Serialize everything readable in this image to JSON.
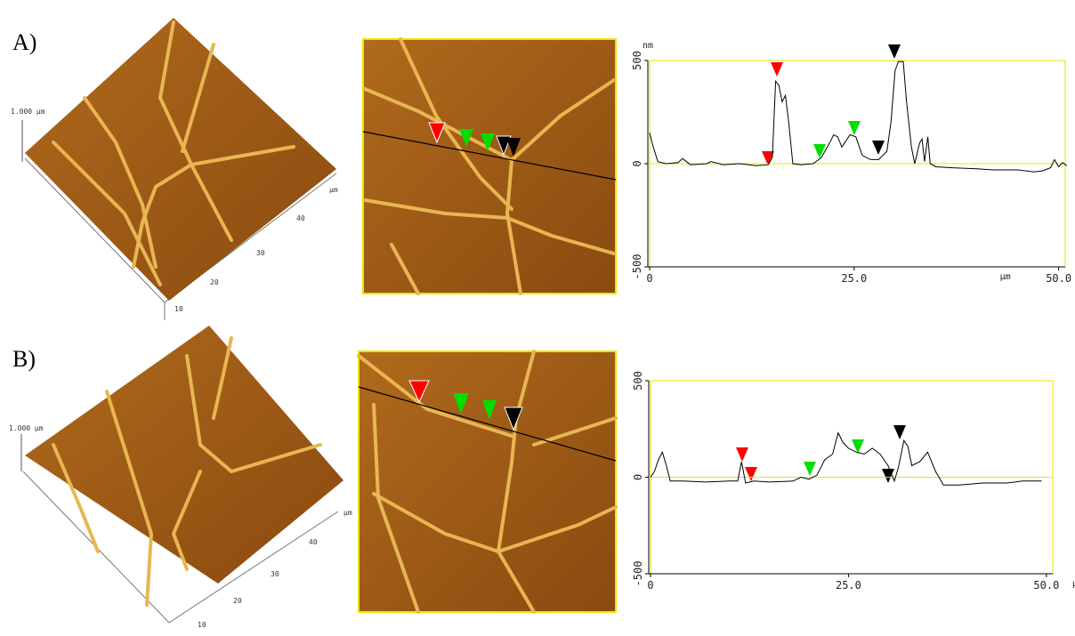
{
  "panels": [
    {
      "label": "A)",
      "afm3d": {
        "z_label": "1.000 µm",
        "unit": "µm",
        "ticks": [
          "10",
          "20",
          "30",
          "40"
        ]
      }
    },
    {
      "label": "B)",
      "afm3d": {
        "z_label": "1.000 µm",
        "unit": "µm",
        "ticks": [
          "10",
          "20",
          "30",
          "40"
        ]
      }
    }
  ],
  "chart_data": [
    {
      "type": "line",
      "y_unit": "nm",
      "x_unit": "µm",
      "frame_color": "#e6e600",
      "xlim": [
        0,
        50.8
      ],
      "ylim": [
        -500,
        500
      ],
      "xticks": [
        0,
        {
          "value": 25,
          "label": "25.0"
        },
        {
          "value": 50,
          "label": "50.0"
        }
      ],
      "yticks": [
        -500,
        0,
        500
      ],
      "series": [
        {
          "color": "#000000",
          "x": [
            0,
            0.3,
            1,
            2,
            3.5,
            4,
            5,
            7,
            7.5,
            9,
            11,
            13,
            14.5,
            15,
            15.4,
            15.8,
            16.2,
            16.6,
            17,
            17.5,
            18.5,
            20,
            21,
            22,
            22.5,
            23,
            23.5,
            24.5,
            25.2,
            26,
            27,
            28,
            29,
            29.5,
            30,
            30.4,
            31,
            31.4,
            32,
            32.4,
            33,
            33.3,
            33.6,
            34,
            34.3,
            35,
            37,
            40,
            42,
            45,
            47,
            48,
            49,
            49.5,
            50,
            50.5,
            51
          ],
          "values": [
            150,
            100,
            10,
            0,
            5,
            25,
            -5,
            0,
            10,
            -5,
            0,
            -10,
            -5,
            30,
            400,
            380,
            300,
            330,
            200,
            0,
            -5,
            0,
            30,
            100,
            140,
            130,
            80,
            140,
            130,
            40,
            20,
            20,
            60,
            200,
            450,
            495,
            495,
            300,
            80,
            0,
            100,
            120,
            10,
            130,
            0,
            -15,
            -20,
            -25,
            -30,
            -30,
            -40,
            -35,
            -20,
            20,
            -15,
            5,
            -10
          ]
        }
      ]
    },
    {
      "type": "line",
      "x_unit": "µm",
      "frame_color": "#e6e600",
      "xlim": [
        0,
        50.8
      ],
      "ylim": [
        -500,
        500
      ],
      "xticks": [
        0,
        {
          "value": 25,
          "label": "25.0"
        },
        {
          "value": 50,
          "label": "50.0"
        }
      ],
      "yticks": [
        -500,
        0,
        500
      ],
      "series": [
        {
          "color": "#000000",
          "x": [
            0,
            0.5,
            1,
            1.5,
            2,
            2.5,
            4,
            7,
            10,
            11,
            11.5,
            12,
            13,
            15,
            18,
            19,
            20,
            21,
            22,
            23,
            23.7,
            24.3,
            25,
            26,
            27,
            28,
            29,
            30,
            30.8,
            31.3,
            32,
            32.5,
            33,
            34,
            35,
            36,
            37,
            39,
            42,
            45,
            47,
            49.4
          ],
          "values": [
            0,
            30,
            90,
            130,
            60,
            -20,
            -20,
            -25,
            -20,
            -20,
            80,
            -30,
            -20,
            -25,
            -20,
            0,
            -10,
            10,
            90,
            120,
            230,
            180,
            150,
            130,
            120,
            150,
            120,
            60,
            -20,
            50,
            190,
            160,
            60,
            80,
            130,
            30,
            -40,
            -40,
            -30,
            -30,
            -20,
            -20
          ]
        }
      ]
    }
  ]
}
